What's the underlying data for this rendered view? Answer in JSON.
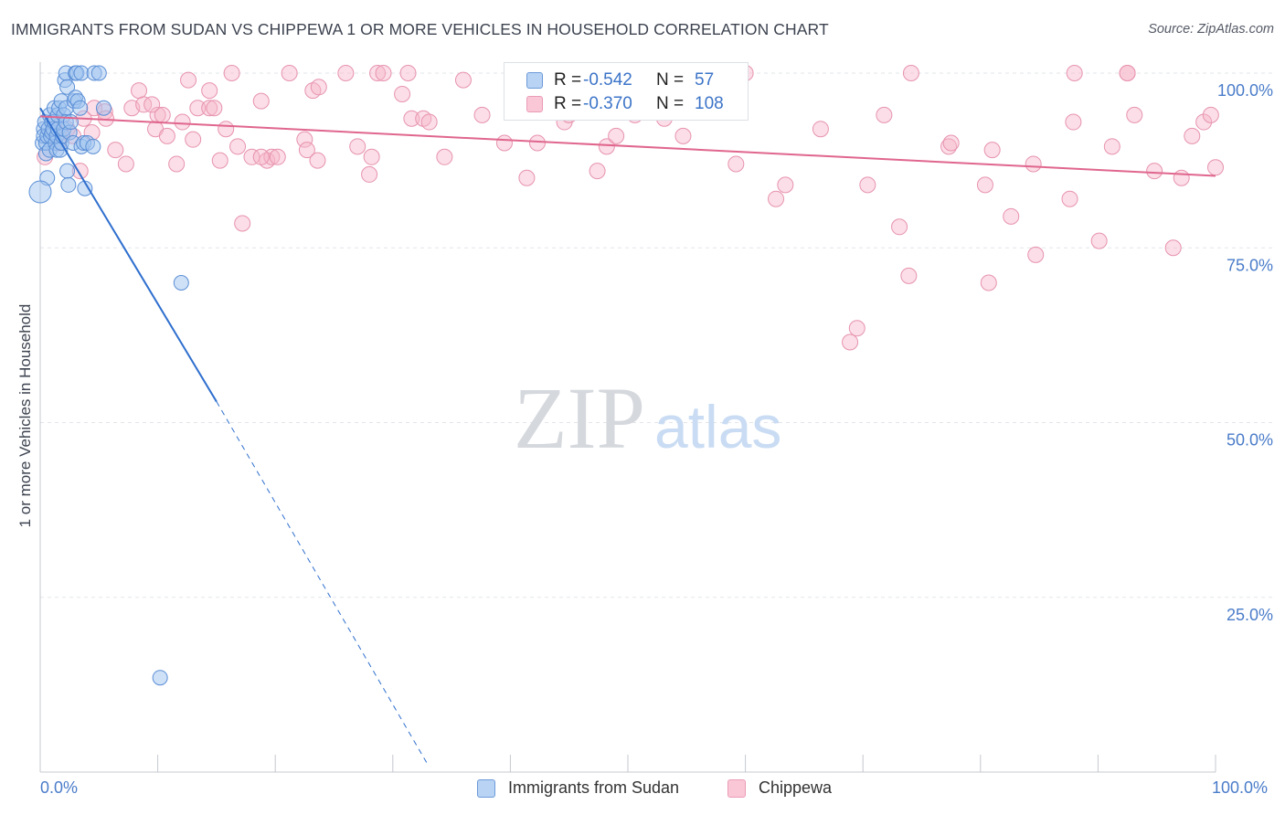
{
  "title": "IMMIGRANTS FROM SUDAN VS CHIPPEWA 1 OR MORE VEHICLES IN HOUSEHOLD CORRELATION CHART",
  "source": "Source: ZipAtlas.com",
  "watermark": {
    "zip": "ZIP",
    "atlas": "atlas"
  },
  "legend_stats": {
    "sudan": {
      "r_label": "R =",
      "r_value": "-0.542",
      "n_label": "N =",
      "n_value": "57"
    },
    "chippewa": {
      "r_label": "R =",
      "r_value": "-0.370",
      "n_label": "N =",
      "n_value": "108"
    }
  },
  "bottom_legend": {
    "sudan": "Immigrants from Sudan",
    "chippewa": "Chippewa"
  },
  "x_tick_labels": {
    "left": "0.0%",
    "right": "100.0%"
  },
  "colors": {
    "sudan_fill": "#9fc3f0",
    "sudan_stroke": "#5b8fd6",
    "sudan_line": "#2f6fce",
    "chippewa_fill": "#f6b6c9",
    "chippewa_stroke": "#e793ae",
    "chippewa_line": "#e0668e",
    "axis_text": "#4a7cc9",
    "grid": "#e3e5ea"
  },
  "chart_data": {
    "type": "scatter",
    "title": "IMMIGRANTS FROM SUDAN VS CHIPPEWA 1 OR MORE VEHICLES IN HOUSEHOLD CORRELATION CHART",
    "xlabel": "",
    "ylabel": "1 or more Vehicles in Household",
    "xlim": [
      0,
      100
    ],
    "ylim": [
      0,
      100
    ],
    "y_ticks": [
      25,
      50,
      75,
      100
    ],
    "y_tick_labels": [
      "25.0%",
      "50.0%",
      "75.0%",
      "100.0%"
    ],
    "grid": true,
    "legend_position": "top-center",
    "series": [
      {
        "name": "Immigrants from Sudan",
        "color": "#9fc3f0",
        "R": -0.542,
        "N": 57,
        "trend": {
          "x0": 0,
          "y0": 95,
          "x1": 15,
          "y1": 53,
          "dashed_to_x": 33,
          "dashed_to_y": 1
        },
        "points": [
          [
            0.2,
            90
          ],
          [
            0.3,
            92
          ],
          [
            0.3,
            91
          ],
          [
            0.4,
            93
          ],
          [
            0.5,
            88.5
          ],
          [
            0.5,
            90
          ],
          [
            0.6,
            91
          ],
          [
            0.6,
            85
          ],
          [
            0.7,
            92
          ],
          [
            0.8,
            94
          ],
          [
            0.8,
            89
          ],
          [
            0.9,
            91
          ],
          [
            1,
            93
          ],
          [
            1,
            91.5
          ],
          [
            1.1,
            92
          ],
          [
            1.2,
            95
          ],
          [
            1.2,
            93
          ],
          [
            1.3,
            90
          ],
          [
            1.4,
            91
          ],
          [
            1.4,
            89
          ],
          [
            1.5,
            92
          ],
          [
            1.5,
            94
          ],
          [
            1.6,
            95
          ],
          [
            1.7,
            89
          ],
          [
            1.8,
            96
          ],
          [
            1.8,
            90
          ],
          [
            1.9,
            91
          ],
          [
            2,
            92
          ],
          [
            2,
            94
          ],
          [
            2.1,
            99
          ],
          [
            2.2,
            95
          ],
          [
            2.2,
            93
          ],
          [
            2.2,
            100
          ],
          [
            2.3,
            98
          ],
          [
            2.3,
            86
          ],
          [
            2.4,
            84
          ],
          [
            2.5,
            91.5
          ],
          [
            2.6,
            93
          ],
          [
            2.8,
            90
          ],
          [
            2.9,
            96
          ],
          [
            3,
            100
          ],
          [
            3,
            96.5
          ],
          [
            3.1,
            100
          ],
          [
            3.2,
            96
          ],
          [
            3.4,
            95
          ],
          [
            3.5,
            89.5
          ],
          [
            3.5,
            100
          ],
          [
            3.7,
            90
          ],
          [
            3.8,
            83.5
          ],
          [
            4,
            90
          ],
          [
            4.5,
            89.5
          ],
          [
            4.6,
            100
          ],
          [
            5,
            100
          ],
          [
            5.4,
            95
          ],
          [
            0,
            83
          ],
          [
            12,
            70
          ],
          [
            10.2,
            13.5
          ]
        ]
      },
      {
        "name": "Chippewa",
        "color": "#f6b6c9",
        "R": -0.37,
        "N": 108,
        "trend": {
          "x0": 0,
          "y0": 93.8,
          "x1": 100,
          "y1": 85.3
        },
        "points": [
          [
            0.4,
            88
          ],
          [
            1.2,
            92
          ],
          [
            1.5,
            90
          ],
          [
            2.3,
            92
          ],
          [
            2.8,
            91
          ],
          [
            3.4,
            86
          ],
          [
            3.7,
            93.5
          ],
          [
            4.4,
            91.5
          ],
          [
            4.6,
            95
          ],
          [
            5.5,
            94.5
          ],
          [
            6.4,
            89
          ],
          [
            7.3,
            87
          ],
          [
            7.8,
            95
          ],
          [
            8.4,
            97.5
          ],
          [
            8.8,
            95.5
          ],
          [
            9.8,
            92
          ],
          [
            10,
            94
          ],
          [
            10.4,
            94
          ],
          [
            10.8,
            91
          ],
          [
            11.6,
            87
          ],
          [
            12.1,
            93
          ],
          [
            12.6,
            99
          ],
          [
            13,
            90.5
          ],
          [
            13.4,
            95
          ],
          [
            14.4,
            95
          ],
          [
            14.4,
            97.5
          ],
          [
            14.8,
            95
          ],
          [
            15.3,
            87.5
          ],
          [
            15.8,
            92
          ],
          [
            16.3,
            100
          ],
          [
            16.8,
            89.5
          ],
          [
            17.2,
            78.5
          ],
          [
            18,
            88
          ],
          [
            18.8,
            96
          ],
          [
            19.3,
            87.5
          ],
          [
            19.7,
            88
          ],
          [
            20.2,
            88
          ],
          [
            21.2,
            100
          ],
          [
            22.5,
            90.5
          ],
          [
            22.7,
            89
          ],
          [
            23.2,
            97.5
          ],
          [
            23.6,
            87.5
          ],
          [
            23.7,
            98
          ],
          [
            26,
            100
          ],
          [
            27,
            89.5
          ],
          [
            28,
            85.5
          ],
          [
            28.2,
            88
          ],
          [
            28.7,
            100
          ],
          [
            29.2,
            100
          ],
          [
            30.8,
            97
          ],
          [
            31.3,
            100
          ],
          [
            31.6,
            93.5
          ],
          [
            32.6,
            93.5
          ],
          [
            33.1,
            93
          ],
          [
            34.4,
            88
          ],
          [
            37.6,
            94
          ],
          [
            39.5,
            90
          ],
          [
            41.4,
            85
          ],
          [
            42.3,
            90
          ],
          [
            44.6,
            93
          ],
          [
            45,
            94
          ],
          [
            47.4,
            86
          ],
          [
            48.2,
            89.5
          ],
          [
            49,
            91
          ],
          [
            50.6,
            94
          ],
          [
            51.5,
            95
          ],
          [
            54.7,
            91
          ],
          [
            55.4,
            95
          ],
          [
            59.2,
            87
          ],
          [
            62.6,
            82
          ],
          [
            63.4,
            84
          ],
          [
            66.4,
            92
          ],
          [
            70.4,
            84
          ],
          [
            71.8,
            94
          ],
          [
            73.1,
            78
          ],
          [
            73.9,
            71
          ],
          [
            74.1,
            100
          ],
          [
            77.3,
            89.5
          ],
          [
            77.5,
            90
          ],
          [
            80.4,
            84
          ],
          [
            80.7,
            70
          ],
          [
            81,
            89
          ],
          [
            82.6,
            79.5
          ],
          [
            84.5,
            87
          ],
          [
            84.7,
            74
          ],
          [
            87.6,
            82
          ],
          [
            87.9,
            93
          ],
          [
            88,
            100
          ],
          [
            90.1,
            76
          ],
          [
            91.2,
            89.5
          ],
          [
            92.5,
            100
          ],
          [
            93.1,
            94
          ],
          [
            94.8,
            86
          ],
          [
            96.4,
            75
          ],
          [
            97.1,
            85
          ],
          [
            98,
            91
          ],
          [
            99,
            93
          ],
          [
            99.6,
            94
          ],
          [
            100,
            86.5
          ],
          [
            68.9,
            61.5
          ],
          [
            69.5,
            63.5
          ],
          [
            92.5,
            100
          ],
          [
            53.1,
            93.5
          ],
          [
            60,
            100
          ],
          [
            36,
            99
          ],
          [
            18.8,
            88
          ],
          [
            9.5,
            95.5
          ],
          [
            5.6,
            93.5
          ]
        ]
      }
    ]
  }
}
